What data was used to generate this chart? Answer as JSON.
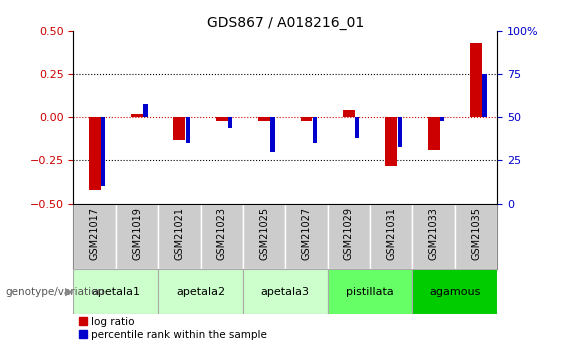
{
  "title": "GDS867 / A018216_01",
  "samples": [
    "GSM21017",
    "GSM21019",
    "GSM21021",
    "GSM21023",
    "GSM21025",
    "GSM21027",
    "GSM21029",
    "GSM21031",
    "GSM21033",
    "GSM21035"
  ],
  "log_ratio": [
    -0.42,
    0.02,
    -0.13,
    -0.02,
    -0.02,
    -0.02,
    0.04,
    -0.28,
    -0.19,
    0.43
  ],
  "percentile_rank_raw": [
    10,
    58,
    35,
    44,
    30,
    35,
    38,
    33,
    48,
    75
  ],
  "ylim_left": [
    -0.5,
    0.5
  ],
  "ylim_right": [
    0,
    100
  ],
  "yticks_left": [
    -0.5,
    -0.25,
    0.0,
    0.25,
    0.5
  ],
  "yticks_right": [
    0,
    25,
    50,
    75,
    100
  ],
  "red_color": "#CC0000",
  "blue_color": "#0000CC",
  "dashed_zero_color": "#CC0000",
  "sample_label_bg": "#cccccc",
  "groups": [
    {
      "label": "apetala1",
      "samples": [
        "GSM21017",
        "GSM21019"
      ],
      "color": "#ccffcc"
    },
    {
      "label": "apetala2",
      "samples": [
        "GSM21021",
        "GSM21023"
      ],
      "color": "#ccffcc"
    },
    {
      "label": "apetala3",
      "samples": [
        "GSM21025",
        "GSM21027"
      ],
      "color": "#ccffcc"
    },
    {
      "label": "pistillata",
      "samples": [
        "GSM21029",
        "GSM21031"
      ],
      "color": "#66ff66"
    },
    {
      "label": "agamous",
      "samples": [
        "GSM21033",
        "GSM21035"
      ],
      "color": "#00cc00"
    }
  ],
  "ylabel_left_color": "#CC0000",
  "ylabel_right_color": "#0000CC",
  "legend_label_red": "log ratio",
  "legend_label_blue": "percentile rank within the sample",
  "genotype_label": "genotype/variation",
  "background_plot": "#ffffff",
  "background_fig": "#ffffff"
}
